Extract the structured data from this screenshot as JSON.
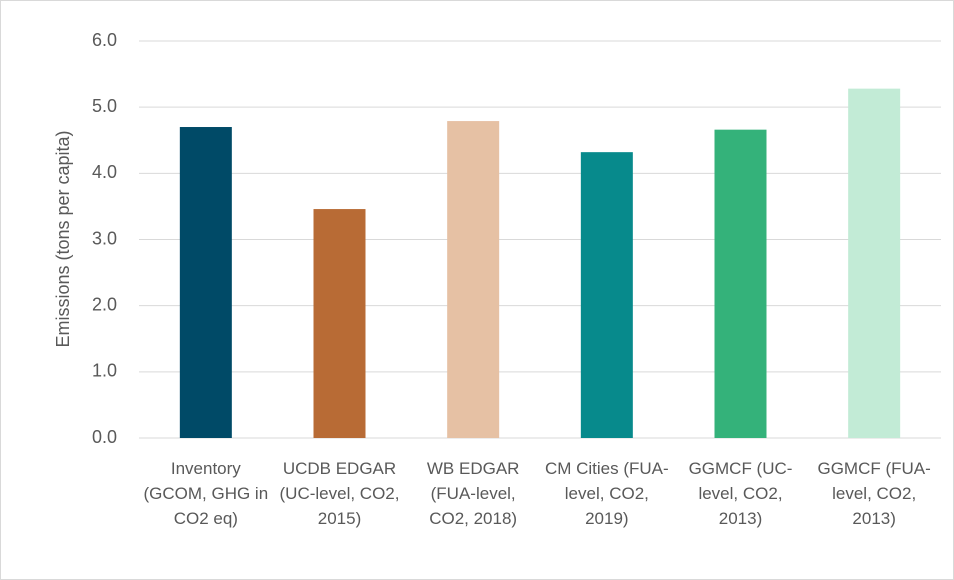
{
  "chart_data": {
    "type": "bar",
    "y_axis_label": "Emissions (tons per capita)",
    "categories": [
      "Inventory (GCOM, GHG in CO2 eq)",
      "UCDB EDGAR (UC-level, CO2, 2015)",
      "WB EDGAR (FUA-level, CO2, 2018)",
      "CM Cities (FUA-level, CO2, 2019)",
      "GGMCF (UC-level, CO2, 2013)",
      "GGMCF (FUA-level, CO2, 2013)"
    ],
    "values": [
      4.7,
      3.46,
      4.79,
      4.32,
      4.66,
      5.28
    ],
    "colors": [
      "#004a67",
      "#b86b35",
      "#e6c1a4",
      "#078a8c",
      "#34b27a",
      "#c2ebd6"
    ],
    "ylim": [
      0,
      6
    ],
    "yticks": [
      {
        "value": 0,
        "label": "0.0"
      },
      {
        "value": 1,
        "label": "1.0"
      },
      {
        "value": 2,
        "label": "2.0"
      },
      {
        "value": 3,
        "label": "3.0"
      },
      {
        "value": 4,
        "label": "4.0"
      },
      {
        "value": 5,
        "label": "5.0"
      },
      {
        "value": 6,
        "label": "6.0"
      }
    ],
    "grid": true
  }
}
